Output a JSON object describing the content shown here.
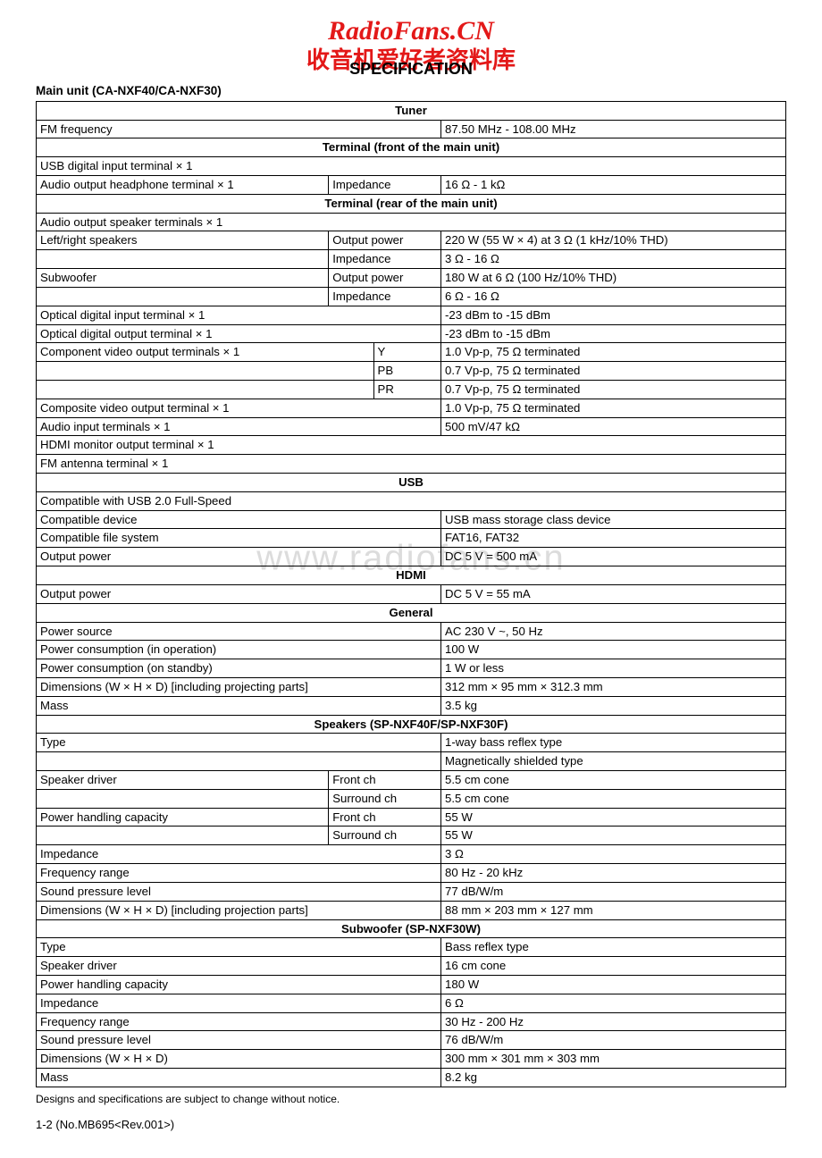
{
  "header": {
    "brand": "RadioFans.CN",
    "cn": "收音机爱好者资料库",
    "title": "SPECIFICATION",
    "subtitle": "Main unit (CA-NXF40/CA-NXF30)"
  },
  "watermark": "www.radiofans.cn",
  "footnote": "Designs and specifications are subject to change without notice.",
  "pagefoot": "1-2 (No.MB695<Rev.001>)",
  "colwidths": {
    "c1": "39%",
    "c2": "15%",
    "c3": "46%"
  },
  "rows": [
    {
      "type": "section",
      "text": "Tuner"
    },
    {
      "c1": "FM frequency",
      "c2": "",
      "c3": "87.50 MHz - 108.00 MHz",
      "merge12": false,
      "span12": true
    },
    {
      "type": "section",
      "text": "Terminal (front of the main unit)"
    },
    {
      "c1": "USB digital input terminal × 1",
      "full": true
    },
    {
      "c1": "Audio output headphone terminal × 1",
      "c2": "Impedance",
      "c3": "16 Ω - 1 kΩ"
    },
    {
      "type": "section",
      "text": "Terminal (rear of the main unit)"
    },
    {
      "c1": "Audio output speaker terminals × 1",
      "full": true
    },
    {
      "c1": "Left/right speakers",
      "c2": "Output power",
      "c3": "220 W (55 W × 4) at 3 Ω (1 kHz/10% THD)"
    },
    {
      "c1": "",
      "c2": "Impedance",
      "c3": "3 Ω - 16 Ω"
    },
    {
      "c1": "Subwoofer",
      "c2": "Output power",
      "c3": "180 W at 6 Ω (100 Hz/10% THD)"
    },
    {
      "c1": "",
      "c2": "Impedance",
      "c3": "6 Ω - 16 Ω"
    },
    {
      "c1": "Optical digital input terminal × 1",
      "span12": true,
      "c3": "-23 dBm to -15 dBm"
    },
    {
      "c1": "Optical digital output terminal × 1",
      "span12": true,
      "c3": "-23 dBm to -15 dBm"
    },
    {
      "c1": "Component video output terminals × 1",
      "c2": "Y",
      "c3": "1.0 Vp-p, 75 Ω terminated",
      "c2narrow": true
    },
    {
      "c1": "",
      "c2": "PB",
      "c3": "0.7 Vp-p, 75 Ω terminated",
      "c2narrow": true
    },
    {
      "c1": "",
      "c2": "PR",
      "c3": "0.7 Vp-p, 75 Ω terminated",
      "c2narrow": true
    },
    {
      "c1": "Composite video output terminal × 1",
      "span12": true,
      "c3": "1.0 Vp-p, 75 Ω terminated"
    },
    {
      "c1": "Audio input terminals × 1",
      "span12": true,
      "c3": "500 mV/47 kΩ"
    },
    {
      "c1": "HDMI monitor output terminal × 1",
      "full": true
    },
    {
      "c1": "FM antenna terminal × 1",
      "full": true
    },
    {
      "type": "section",
      "text": "USB"
    },
    {
      "c1": "Compatible with USB 2.0 Full-Speed",
      "full": true
    },
    {
      "c1": "Compatible device",
      "span12": true,
      "c3": "USB mass storage class device"
    },
    {
      "c1": "Compatible file system",
      "span12": true,
      "c3": "FAT16, FAT32"
    },
    {
      "c1": "Output power",
      "span12": true,
      "c3": "DC 5 V = 500 mA"
    },
    {
      "type": "section",
      "text": "HDMI"
    },
    {
      "c1": "Output power",
      "span12": true,
      "c3": "DC 5 V = 55 mA"
    },
    {
      "type": "section",
      "text": "General"
    },
    {
      "c1": "Power source",
      "span12": true,
      "c3": "AC 230 V ~, 50 Hz"
    },
    {
      "c1": "Power consumption (in operation)",
      "span12": true,
      "c3": "100 W"
    },
    {
      "c1": "Power consumption (on standby)",
      "span12": true,
      "c3": "1 W or less"
    },
    {
      "c1": "Dimensions (W × H × D) [including projecting parts]",
      "span12": true,
      "c3": "312 mm × 95 mm × 312.3 mm"
    },
    {
      "c1": "Mass",
      "span12": true,
      "c3": "3.5 kg"
    },
    {
      "type": "section",
      "text": "Speakers (SP-NXF40F/SP-NXF30F)"
    },
    {
      "c1": "Type",
      "span12": true,
      "c3": "1-way bass reflex type"
    },
    {
      "c1": "",
      "span12": true,
      "c3": "Magnetically shielded type"
    },
    {
      "c1": "Speaker driver",
      "c2": "Front ch",
      "c3": "5.5 cm cone"
    },
    {
      "c1": "",
      "c2": "Surround ch",
      "c3": "5.5 cm cone"
    },
    {
      "c1": "Power handling capacity",
      "c2": "Front ch",
      "c3": "55 W"
    },
    {
      "c1": "",
      "c2": "Surround ch",
      "c3": "55 W"
    },
    {
      "c1": "Impedance",
      "span12": true,
      "c3": "3 Ω"
    },
    {
      "c1": "Frequency range",
      "span12": true,
      "c3": "80 Hz - 20 kHz"
    },
    {
      "c1": "Sound pressure level",
      "span12": true,
      "c3": "77 dB/W/m"
    },
    {
      "c1": "Dimensions (W × H × D) [including projection parts]",
      "span12": true,
      "c3": "88 mm × 203 mm × 127 mm"
    },
    {
      "type": "section",
      "text": "Subwoofer (SP-NXF30W)"
    },
    {
      "c1": "Type",
      "span12": true,
      "c3": "Bass reflex type"
    },
    {
      "c1": "Speaker driver",
      "span12": true,
      "c3": "16 cm cone"
    },
    {
      "c1": "Power handling capacity",
      "span12": true,
      "c3": "180 W"
    },
    {
      "c1": "Impedance",
      "span12": true,
      "c3": "6 Ω"
    },
    {
      "c1": "Frequency range",
      "span12": true,
      "c3": "30 Hz - 200 Hz"
    },
    {
      "c1": "Sound pressure level",
      "span12": true,
      "c3": "76 dB/W/m"
    },
    {
      "c1": "Dimensions (W × H × D)",
      "span12": true,
      "c3": "300 mm × 301 mm × 303 mm"
    },
    {
      "c1": "Mass",
      "span12": true,
      "c3": "8.2 kg"
    }
  ]
}
